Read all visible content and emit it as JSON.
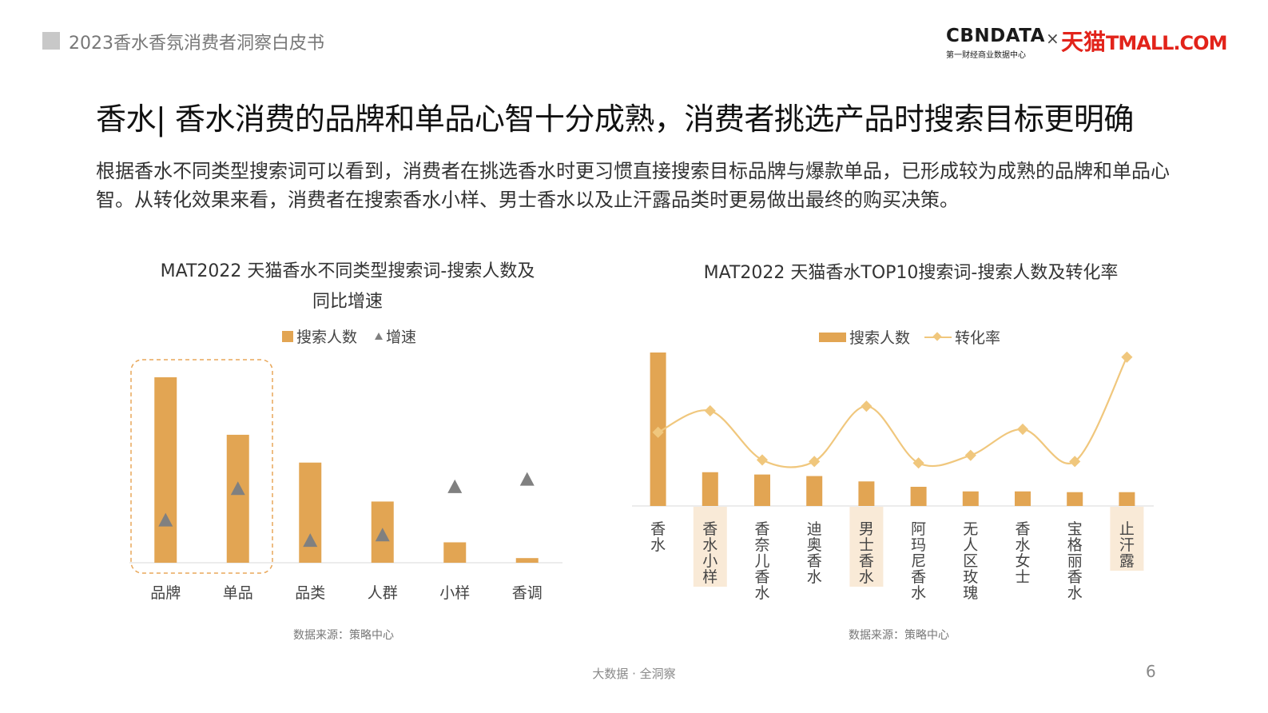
{
  "header": {
    "report_title": "2023香水香氛消费者洞察白皮书",
    "logo_cbn": "CBNDATA",
    "logo_cbn_sub": "第一财经商业数据中心",
    "logo_times": "×",
    "logo_tmall_cn": "天猫",
    "logo_tmall_latin": "TMALL.COM"
  },
  "slide": {
    "title": "香水| 香水消费的品牌和单品心智十分成熟，消费者挑选产品时搜索目标更明确",
    "description": "根据香水不同类型搜索词可以看到，消费者在挑选香水时更习惯直接搜索目标品牌与爆款单品，已形成较为成熟的品牌和单品心智。从转化效果来看，消费者在搜索香水小样、男士香水以及止汗露品类时更易做出最终的购买决策。"
  },
  "colors": {
    "bar": "#e2a553",
    "marker": "#808080",
    "line": "#f0c77d",
    "highlight_box": "#e8a75a",
    "highlight_label_bg": "#f9ead7"
  },
  "chart_data": [
    {
      "type": "bar",
      "title": "MAT2022 天猫香水不同类型搜索词-搜索人数及同比增速",
      "title_lines": [
        "MAT2022 天猫香水不同类型搜索词-搜索人数及",
        "同比增速"
      ],
      "categories": [
        "品牌",
        "单品",
        "品类",
        "人群",
        "小样",
        "香调"
      ],
      "series": [
        {
          "name": "搜索人数",
          "type": "bar",
          "values": [
            100,
            69,
            54,
            33,
            11,
            2.5
          ]
        },
        {
          "name": "增速",
          "type": "marker",
          "values": [
            23,
            40,
            12,
            15,
            41,
            45
          ]
        }
      ],
      "highlighted_categories": [
        "品牌",
        "单品"
      ],
      "ylim": [
        0,
        100
      ],
      "source": "数据来源：策略中心"
    },
    {
      "type": "bar",
      "title": "MAT2022 天猫香水TOP10搜索词-搜索人数及转化率",
      "categories": [
        "香水",
        "香水小样",
        "香奈儿香水",
        "迪奥香水",
        "男士香水",
        "阿玛尼香水",
        "无人区玫瑰",
        "香水女士",
        "宝格丽香水",
        "止汗露"
      ],
      "series": [
        {
          "name": "搜索人数",
          "type": "bar",
          "values": [
            100,
            22,
            20.5,
            19.5,
            16,
            12.5,
            9.5,
            9.5,
            9,
            9
          ]
        },
        {
          "name": "转化率",
          "type": "line",
          "values": [
            48,
            62,
            30,
            29,
            65,
            28,
            33,
            50,
            29,
            97
          ]
        }
      ],
      "highlighted_categories": [
        "香水小样",
        "男士香水",
        "止汗露"
      ],
      "ylim": [
        0,
        100
      ],
      "source": "数据来源：策略中心"
    }
  ],
  "footer": {
    "slogan": "大数据 · 全洞察",
    "page_number": "6"
  }
}
